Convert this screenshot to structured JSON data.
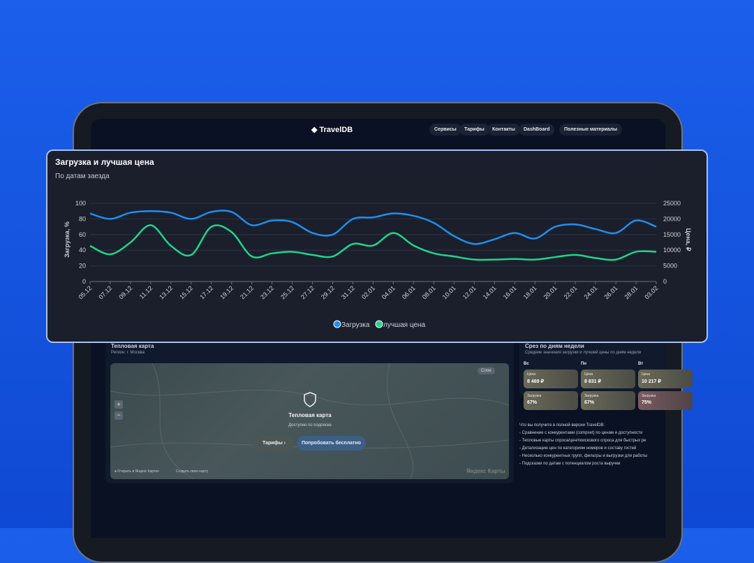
{
  "nav": {
    "logo": "TravelDB",
    "items": [
      "Сервисы",
      "Тарифы",
      "Контакты",
      "DashBoard",
      "Полезные материалы"
    ]
  },
  "chart_data": {
    "type": "line",
    "title": "Загрузка и лучшая цена",
    "subtitle": "По датам заезда",
    "y_label": "Загрузка, %",
    "y2_label": "Цена, ₽",
    "categories": [
      "05.12",
      "07.12",
      "09.12",
      "11.12",
      "13.12",
      "15.12",
      "17.12",
      "19.12",
      "21.12",
      "23.12",
      "25.12",
      "27.12",
      "29.12",
      "31.12",
      "02.01",
      "04.01",
      "06.01",
      "08.01",
      "10.01",
      "12.01",
      "14.01",
      "16.01",
      "18.01",
      "20.01",
      "22.01",
      "24.01",
      "26.01",
      "28.01",
      "03.02"
    ],
    "ylim": [
      0,
      100
    ],
    "yticks": [
      0,
      20,
      40,
      60,
      80,
      100
    ],
    "y2lim": [
      0,
      25000
    ],
    "y2ticks": [
      0,
      5000,
      10000,
      15000,
      20000,
      25000
    ],
    "grid": true,
    "series": [
      {
        "name": "Загрузка",
        "color": "#1e8ff0",
        "values": [
          87,
          80,
          88,
          90,
          88,
          80,
          89,
          89,
          72,
          78,
          76,
          62,
          60,
          80,
          82,
          87,
          84,
          75,
          58,
          48,
          54,
          62,
          55,
          70,
          73,
          67,
          62,
          78,
          70
        ]
      },
      {
        "name": "лучшая цена",
        "color": "#1fd58c",
        "axis": "y2",
        "values": [
          11400,
          8700,
          12500,
          18000,
          11400,
          8500,
          17500,
          15800,
          8000,
          9000,
          9500,
          8500,
          8000,
          12000,
          11500,
          15500,
          11500,
          9000,
          8000,
          7000,
          7000,
          7200,
          7000,
          7800,
          8500,
          7500,
          7000,
          9500,
          9500
        ]
      }
    ]
  },
  "heatmap": {
    "title": "Тепловая карта",
    "region": "Регион: г. Москва",
    "overlay_title": "Тепловая карта",
    "overlay_subtitle": "Доступно по подписке",
    "button_plans": "Тарифы",
    "button_trial": "Попробовать бесплатно",
    "layer": "Слои",
    "open_link": "Открыть в Яндекс Картах",
    "create_link": "Создать свою карту",
    "brand": "Яндекс Карты"
  },
  "weekdays": {
    "title": "Срез по дням недели",
    "subtitle": "Средние значения загрузки и лучшей цены по дням недели",
    "price_label": "Цена",
    "load_label": "Загрузка",
    "days": [
      {
        "day": "Вс",
        "price": "8 469 ₽",
        "load": "67%"
      },
      {
        "day": "Пн",
        "price": "8 831 ₽",
        "load": "67%"
      },
      {
        "day": "Вт",
        "price": "10 217 ₽",
        "load": "75%"
      }
    ]
  },
  "features": {
    "title": "Что вы получите в полной версии TravelDB:",
    "items": [
      "- Сравнение с конкурентами (compset) по ценам и доступности",
      "- Тепловые карты спроса/цен/поискового спроса для быстрых ре",
      "- Детализацию цен по категориям номеров и составу гостей",
      "- Несколько конкурентных групп, фильтры и выгрузки для работы",
      "- Подсказки по датам с потенциалом роста выручки"
    ]
  }
}
